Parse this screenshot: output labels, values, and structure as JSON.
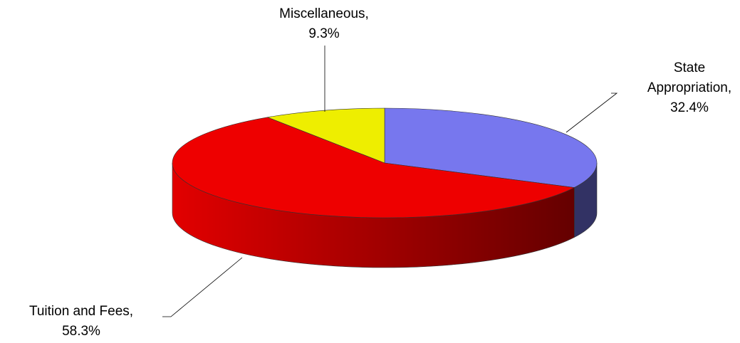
{
  "chart_data": {
    "type": "pie3d",
    "categories": [
      "State Appropriation,",
      "Tuition and Fees,",
      "Miscellaneous,"
    ],
    "values": [
      32.4,
      58.3,
      9.3
    ],
    "value_labels": [
      "32.4%",
      "58.3%",
      "9.3%"
    ],
    "colors": [
      "#7777ee",
      "#ee0000",
      "#eeee00"
    ]
  }
}
